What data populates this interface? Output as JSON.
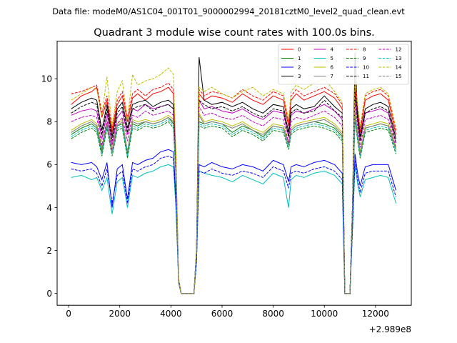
{
  "chart_data": {
    "type": "line",
    "suptitle": "Data file: modeM0/AS1C04_001T01_9000002994_20181cztM0_level2_quad_clean.evt",
    "title": "Quadrant 3 module wise count rates with 100.0s bins.",
    "xlabel": "",
    "ylabel": "",
    "offset_label": "+2.989e8",
    "xlim": [
      -450,
      13400
    ],
    "ylim": [
      -0.55,
      11.75
    ],
    "x_ticks": [
      0,
      2000,
      4000,
      6000,
      8000,
      10000,
      12000
    ],
    "y_ticks": [
      0,
      2,
      4,
      6,
      8,
      10
    ],
    "x_tick_labels": [
      "0",
      "2000",
      "4000",
      "6000",
      "8000",
      "10000",
      "12000"
    ],
    "y_tick_labels": [
      "0",
      "2",
      "4",
      "6",
      "8",
      "10"
    ],
    "legend_position": "top-right",
    "x": [
      100,
      500,
      900,
      1100,
      1300,
      1500,
      1700,
      1900,
      2100,
      2300,
      2500,
      2700,
      3000,
      3300,
      3600,
      3900,
      4100,
      4200,
      4300,
      4400,
      4700,
      4900,
      5000,
      5100,
      5300,
      5600,
      6000,
      6400,
      6800,
      7200,
      7600,
      8000,
      8400,
      8600,
      8700,
      8900,
      9200,
      9600,
      10000,
      10400,
      10700,
      10800,
      10900,
      11000,
      11100,
      11200,
      11300,
      11400,
      11600,
      11900,
      12200,
      12500,
      12800
    ],
    "series": [
      {
        "name": "0",
        "color": "#ff0000",
        "dash": "solid",
        "values": [
          8.8,
          9.2,
          9.4,
          9.6,
          8.2,
          9.0,
          7.5,
          8.8,
          9.2,
          8.0,
          9.1,
          9.3,
          9.0,
          9.3,
          9.4,
          9.6,
          9.3,
          6.0,
          0.7,
          0.0,
          0.0,
          0.0,
          2.0,
          9.3,
          9.0,
          9.2,
          9.1,
          8.9,
          9.3,
          9.0,
          8.8,
          9.2,
          9.0,
          7.8,
          9.0,
          9.3,
          9.0,
          9.2,
          9.4,
          9.1,
          8.6,
          0.0,
          0.0,
          0.0,
          4.0,
          9.6,
          8.5,
          7.5,
          9.0,
          9.2,
          9.3,
          9.0,
          7.4
        ]
      },
      {
        "name": "1",
        "color": "#008000",
        "dash": "solid",
        "values": [
          7.4,
          7.7,
          7.9,
          7.7,
          6.6,
          7.9,
          6.6,
          7.8,
          7.9,
          6.5,
          7.9,
          7.8,
          8.0,
          7.9,
          8.0,
          8.2,
          7.9,
          5.5,
          0.5,
          0.0,
          0.0,
          0.0,
          2.0,
          8.0,
          7.9,
          8.0,
          7.9,
          7.5,
          7.8,
          7.6,
          7.3,
          7.8,
          7.7,
          6.9,
          7.6,
          7.8,
          7.9,
          8.0,
          7.9,
          7.7,
          7.3,
          0.0,
          0.0,
          0.0,
          4.0,
          8.3,
          7.3,
          6.5,
          7.7,
          7.8,
          7.9,
          7.8,
          6.7
        ]
      },
      {
        "name": "2",
        "color": "#0000ff",
        "dash": "solid",
        "values": [
          6.1,
          6.0,
          6.1,
          5.9,
          5.3,
          6.1,
          4.0,
          5.8,
          6.0,
          4.4,
          6.1,
          6.0,
          6.2,
          6.3,
          6.6,
          6.7,
          6.6,
          4.4,
          0.6,
          0.0,
          0.0,
          0.0,
          1.5,
          6.0,
          5.9,
          6.1,
          5.9,
          5.8,
          6.0,
          5.9,
          5.7,
          6.2,
          6.0,
          5.2,
          5.9,
          6.0,
          5.9,
          6.1,
          6.2,
          6.0,
          5.6,
          0.0,
          0.0,
          0.0,
          3.0,
          6.5,
          5.6,
          5.0,
          5.9,
          6.0,
          6.0,
          6.0,
          4.8
        ]
      },
      {
        "name": "3",
        "color": "#000000",
        "dash": "solid",
        "values": [
          8.6,
          8.9,
          9.1,
          9.0,
          7.6,
          8.8,
          7.3,
          8.6,
          8.9,
          7.7,
          8.8,
          8.9,
          9.0,
          8.7,
          8.9,
          9.0,
          8.8,
          5.8,
          0.6,
          0.0,
          0.0,
          0.0,
          2.0,
          11.0,
          9.0,
          8.8,
          8.9,
          8.7,
          8.9,
          8.6,
          8.4,
          8.8,
          8.7,
          7.5,
          8.6,
          8.8,
          8.6,
          8.7,
          9.2,
          8.7,
          8.4,
          0.0,
          0.0,
          0.0,
          4.0,
          11.2,
          8.3,
          7.3,
          8.6,
          8.8,
          8.9,
          8.7,
          7.2
        ]
      },
      {
        "name": "4",
        "color": "#bf00bf",
        "dash": "solid",
        "values": [
          8.3,
          8.5,
          8.6,
          8.5,
          7.2,
          8.4,
          6.9,
          8.2,
          8.5,
          7.4,
          8.6,
          8.5,
          8.8,
          8.6,
          8.7,
          8.8,
          8.6,
          5.6,
          0.5,
          0.0,
          0.0,
          0.0,
          2.0,
          9.0,
          8.6,
          8.7,
          8.5,
          8.4,
          8.6,
          8.3,
          8.1,
          8.5,
          8.4,
          7.3,
          8.3,
          8.5,
          8.4,
          8.6,
          8.8,
          8.5,
          8.1,
          0.0,
          0.0,
          0.0,
          4.0,
          9.2,
          8.1,
          7.1,
          8.4,
          8.5,
          8.6,
          8.4,
          7.0
        ]
      },
      {
        "name": "5",
        "color": "#00bfbf",
        "dash": "solid",
        "values": [
          5.4,
          5.5,
          5.3,
          5.4,
          4.8,
          5.4,
          3.7,
          5.2,
          5.4,
          4.0,
          5.5,
          5.4,
          5.6,
          5.7,
          5.9,
          6.0,
          5.9,
          3.9,
          0.5,
          0.0,
          0.0,
          0.0,
          1.5,
          5.7,
          5.6,
          5.5,
          5.4,
          5.2,
          5.5,
          5.3,
          5.1,
          5.6,
          5.4,
          4.0,
          5.3,
          5.5,
          5.4,
          5.6,
          5.7,
          5.5,
          5.1,
          0.0,
          0.0,
          0.0,
          3.0,
          6.0,
          5.1,
          4.5,
          5.3,
          5.4,
          5.5,
          5.4,
          4.2
        ]
      },
      {
        "name": "6",
        "color": "#bfbf00",
        "dash": "solid",
        "values": [
          7.6,
          7.9,
          8.1,
          7.9,
          6.8,
          8.0,
          6.7,
          7.9,
          8.1,
          6.6,
          8.1,
          8.0,
          8.1,
          8.0,
          8.1,
          8.3,
          8.1,
          5.6,
          0.5,
          0.0,
          0.0,
          0.0,
          2.0,
          8.4,
          8.0,
          8.1,
          8.0,
          7.8,
          8.0,
          7.7,
          7.5,
          7.9,
          7.8,
          7.0,
          7.7,
          7.9,
          8.0,
          8.1,
          8.2,
          7.9,
          7.5,
          0.0,
          0.0,
          0.0,
          4.0,
          8.5,
          7.5,
          6.6,
          7.8,
          7.9,
          8.0,
          7.9,
          6.8
        ]
      },
      {
        "name": "7",
        "color": "#808080",
        "dash": "solid",
        "values": [
          7.5,
          7.8,
          8.0,
          7.8,
          6.7,
          7.9,
          6.6,
          7.8,
          8.0,
          6.6,
          8.0,
          7.9,
          8.0,
          7.9,
          8.0,
          8.2,
          8.0,
          5.5,
          0.5,
          0.0,
          0.0,
          0.0,
          2.0,
          8.3,
          7.9,
          8.0,
          7.9,
          7.7,
          7.9,
          7.6,
          7.4,
          7.8,
          7.7,
          6.9,
          7.6,
          7.8,
          7.9,
          8.0,
          8.1,
          7.8,
          7.4,
          0.0,
          0.0,
          0.0,
          4.0,
          8.4,
          7.4,
          6.5,
          7.7,
          7.8,
          7.9,
          7.8,
          6.7
        ]
      },
      {
        "name": "8",
        "color": "#ff0000",
        "dash": "dashed",
        "values": [
          9.3,
          9.4,
          9.6,
          9.7,
          8.4,
          9.2,
          7.7,
          9.0,
          9.4,
          8.2,
          9.3,
          9.5,
          9.2,
          9.5,
          9.6,
          9.8,
          9.5,
          6.1,
          0.7,
          0.0,
          0.0,
          0.0,
          2.0,
          9.5,
          9.2,
          9.4,
          9.3,
          9.1,
          9.5,
          9.2,
          9.0,
          9.4,
          9.2,
          8.0,
          9.2,
          9.5,
          9.2,
          9.4,
          9.6,
          9.3,
          8.8,
          0.0,
          0.0,
          0.0,
          4.0,
          9.8,
          8.7,
          7.7,
          9.2,
          9.4,
          9.5,
          9.2,
          7.6
        ]
      },
      {
        "name": "9",
        "color": "#008000",
        "dash": "dashed",
        "values": [
          7.2,
          7.5,
          7.7,
          7.5,
          6.4,
          7.7,
          6.4,
          7.6,
          7.7,
          6.3,
          7.7,
          7.6,
          7.8,
          7.7,
          7.8,
          8.0,
          7.7,
          5.3,
          0.5,
          0.0,
          0.0,
          0.0,
          2.0,
          7.8,
          7.7,
          7.8,
          7.7,
          7.3,
          7.6,
          7.4,
          7.1,
          7.6,
          7.5,
          6.7,
          7.4,
          7.6,
          7.7,
          7.8,
          7.7,
          7.5,
          7.1,
          0.0,
          0.0,
          0.0,
          4.0,
          8.1,
          7.1,
          6.3,
          7.5,
          7.6,
          7.7,
          7.6,
          6.5
        ]
      },
      {
        "name": "10",
        "color": "#0000ff",
        "dash": "dashed",
        "values": [
          5.8,
          5.7,
          5.8,
          5.6,
          5.0,
          5.8,
          4.2,
          5.5,
          5.7,
          4.2,
          5.8,
          5.7,
          5.9,
          6.0,
          6.3,
          6.4,
          6.3,
          4.2,
          0.6,
          0.0,
          0.0,
          0.0,
          1.5,
          5.7,
          5.6,
          5.8,
          5.6,
          5.5,
          5.7,
          5.6,
          5.4,
          5.9,
          5.7,
          4.9,
          5.6,
          5.7,
          5.6,
          5.8,
          5.9,
          5.7,
          5.3,
          0.0,
          0.0,
          0.0,
          3.0,
          6.2,
          5.3,
          4.7,
          5.6,
          5.7,
          5.7,
          5.7,
          4.5
        ]
      },
      {
        "name": "11",
        "color": "#000000",
        "dash": "dashed",
        "values": [
          8.4,
          8.7,
          8.9,
          8.8,
          7.4,
          8.6,
          7.1,
          8.4,
          8.7,
          7.5,
          8.6,
          8.7,
          8.8,
          8.5,
          8.7,
          8.8,
          8.6,
          5.7,
          0.6,
          0.0,
          0.0,
          0.0,
          2.0,
          9.0,
          8.8,
          8.6,
          8.7,
          8.5,
          8.7,
          8.4,
          8.2,
          8.6,
          8.5,
          7.3,
          8.4,
          8.6,
          8.4,
          8.5,
          9.0,
          8.5,
          8.2,
          0.0,
          0.0,
          0.0,
          4.0,
          9.4,
          8.1,
          7.1,
          8.4,
          8.6,
          8.7,
          8.5,
          7.0
        ]
      },
      {
        "name": "12",
        "color": "#bf00bf",
        "dash": "dashed",
        "values": [
          8.0,
          8.2,
          8.3,
          8.2,
          6.9,
          8.1,
          6.6,
          7.9,
          8.2,
          7.1,
          8.3,
          8.2,
          8.5,
          8.3,
          8.4,
          8.5,
          8.3,
          5.4,
          0.5,
          0.0,
          0.0,
          0.0,
          2.0,
          8.7,
          8.3,
          8.4,
          8.2,
          8.1,
          8.3,
          8.0,
          7.8,
          8.2,
          8.1,
          7.0,
          8.0,
          8.2,
          8.1,
          8.3,
          8.5,
          8.2,
          7.8,
          0.0,
          0.0,
          0.0,
          4.0,
          8.9,
          7.8,
          6.8,
          8.1,
          8.2,
          8.3,
          8.1,
          6.8
        ]
      },
      {
        "name": "13",
        "color": "#00bfbf",
        "dash": "dashed",
        "values": [
          7.3,
          7.6,
          7.8,
          7.6,
          6.5,
          7.8,
          6.5,
          7.7,
          7.8,
          6.4,
          7.8,
          7.7,
          7.9,
          7.8,
          7.9,
          8.1,
          7.8,
          5.4,
          0.5,
          0.0,
          0.0,
          0.0,
          2.0,
          7.9,
          7.8,
          7.9,
          7.8,
          7.4,
          7.7,
          7.5,
          7.2,
          7.7,
          7.6,
          6.8,
          7.5,
          7.7,
          7.8,
          7.9,
          7.8,
          7.6,
          7.2,
          0.0,
          0.0,
          0.0,
          4.0,
          8.2,
          7.2,
          6.4,
          7.6,
          7.7,
          7.8,
          7.7,
          6.6
        ]
      },
      {
        "name": "14",
        "color": "#bfbf00",
        "dash": "dashed",
        "values": [
          9.0,
          9.3,
          9.6,
          9.5,
          8.3,
          10.1,
          7.8,
          9.4,
          9.9,
          8.1,
          10.2,
          9.7,
          9.9,
          10.0,
          10.2,
          10.5,
          10.2,
          6.4,
          0.7,
          0.0,
          0.0,
          0.0,
          2.0,
          9.6,
          9.4,
          9.6,
          9.3,
          9.1,
          9.4,
          9.6,
          9.2,
          9.5,
          9.3,
          8.1,
          9.4,
          9.7,
          9.5,
          9.8,
          10.0,
          9.4,
          8.9,
          0.0,
          0.0,
          0.0,
          4.0,
          10.0,
          8.8,
          7.8,
          9.3,
          9.5,
          9.6,
          9.3,
          7.7
        ]
      },
      {
        "name": "15",
        "color": "#808080",
        "dash": "dashed",
        "values": [
          7.5,
          7.8,
          8.0,
          7.8,
          6.7,
          7.9,
          6.6,
          7.8,
          8.0,
          6.6,
          8.0,
          7.9,
          8.0,
          7.9,
          8.0,
          8.2,
          8.0,
          5.5,
          0.5,
          0.0,
          0.0,
          0.0,
          2.0,
          8.3,
          7.9,
          8.0,
          7.9,
          7.7,
          7.9,
          7.6,
          7.4,
          7.8,
          7.7,
          6.9,
          7.6,
          7.8,
          7.9,
          8.0,
          8.1,
          7.8,
          7.4,
          0.0,
          0.0,
          0.0,
          4.0,
          8.4,
          7.4,
          6.5,
          7.7,
          7.8,
          7.9,
          7.8,
          6.7
        ]
      }
    ]
  }
}
